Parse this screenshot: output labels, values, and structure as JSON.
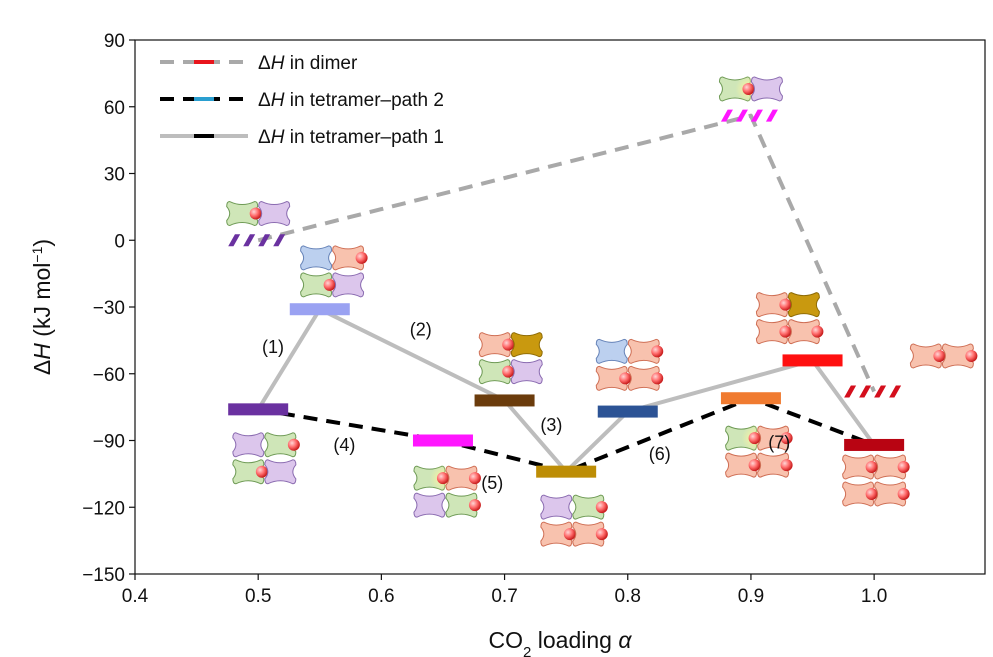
{
  "chart_data": {
    "type": "line",
    "xlabel": "CO₂ loading α",
    "ylabel": "ΔH (kJ mol⁻¹)",
    "xlim": [
      0.4,
      1.09
    ],
    "ylim": [
      -150,
      90
    ],
    "xticks": [
      "0.4",
      "0.5",
      "0.6",
      "0.7",
      "0.8",
      "0.9",
      "1.0"
    ],
    "yticks": [
      "90",
      "60",
      "30",
      "0",
      "-30",
      "-60",
      "-90",
      "-120",
      "-150"
    ],
    "legend_position": "top-left",
    "legend": [
      {
        "label": "ΔH in dimer",
        "line_style": "dashed",
        "line_color": "#a9a9a9",
        "swatch_color": "#e8141c"
      },
      {
        "label": "ΔH in tetramer–path 2",
        "line_style": "dashed",
        "line_color": "#000000",
        "swatch_color": "#2a9fd0"
      },
      {
        "label": "ΔH in tetramer–path 1",
        "line_style": "solid",
        "line_color": "#bdbdbd",
        "swatch_color": "#000000"
      }
    ],
    "series": [
      {
        "name": "ΔH in dimer",
        "style": "dashed",
        "color": "#a9a9a9",
        "points": [
          {
            "x": 0.5,
            "y": 0
          },
          {
            "x": 0.9,
            "y": 56
          },
          {
            "x": 1.0,
            "y": -68
          }
        ]
      },
      {
        "name": "ΔH in tetramer–path 2",
        "style": "dashed",
        "color": "#000000",
        "points": [
          {
            "x": 0.5,
            "y": -76
          },
          {
            "x": 0.65,
            "y": -90
          },
          {
            "x": 0.75,
            "y": -104
          },
          {
            "x": 0.9,
            "y": -71
          },
          {
            "x": 1.0,
            "y": -92
          }
        ]
      },
      {
        "name": "ΔH in tetramer–path 1",
        "style": "solid",
        "color": "#bdbdbd",
        "points": [
          {
            "x": 0.5,
            "y": -76
          },
          {
            "x": 0.55,
            "y": -31
          },
          {
            "x": 0.7,
            "y": -72
          },
          {
            "x": 0.75,
            "y": -104
          },
          {
            "x": 0.8,
            "y": -77
          },
          {
            "x": 0.95,
            "y": -54
          },
          {
            "x": 1.0,
            "y": -92
          }
        ]
      }
    ],
    "levels": [
      {
        "x": 0.5,
        "y": -76,
        "color": "#6a31a0",
        "pattern": "solid"
      },
      {
        "x": 0.55,
        "y": -31,
        "color": "#9aa2f2",
        "pattern": "solid"
      },
      {
        "x": 0.65,
        "y": -90,
        "color": "#ff16ff",
        "pattern": "solid"
      },
      {
        "x": 0.7,
        "y": -72,
        "color": "#6b3c0c",
        "pattern": "solid"
      },
      {
        "x": 0.75,
        "y": -104,
        "color": "#bd8d05",
        "pattern": "solid"
      },
      {
        "x": 0.8,
        "y": -77,
        "color": "#2c5395",
        "pattern": "solid"
      },
      {
        "x": 0.9,
        "y": -71,
        "color": "#f07b30",
        "pattern": "solid"
      },
      {
        "x": 0.95,
        "y": -54,
        "color": "#ff1010",
        "pattern": "solid"
      },
      {
        "x": 1.0,
        "y": -92,
        "color": "#b80412",
        "pattern": "solid"
      },
      {
        "x": 0.5,
        "y": 0,
        "color": "#6a31a0",
        "pattern": "hatched"
      },
      {
        "x": 0.9,
        "y": 56,
        "color": "#ff16ff",
        "pattern": "hatched"
      },
      {
        "x": 1.0,
        "y": -68,
        "color": "#d40e1c",
        "pattern": "hatched"
      }
    ],
    "step_labels": [
      {
        "text": "(1)",
        "x": 0.512,
        "y": -48
      },
      {
        "text": "(2)",
        "x": 0.632,
        "y": -40
      },
      {
        "text": "(3)",
        "x": 0.738,
        "y": -83
      },
      {
        "text": "(4)",
        "x": 0.57,
        "y": -92
      },
      {
        "text": "(5)",
        "x": 0.69,
        "y": -109
      },
      {
        "text": "(6)",
        "x": 0.826,
        "y": -96
      },
      {
        "text": "(7)",
        "x": 0.923,
        "y": -91
      }
    ],
    "molecule_icons": [
      {
        "name": "dimer-molecule-icon",
        "x": 0.5,
        "y": 12,
        "rows": [
          [
            "green-1",
            "purple"
          ]
        ]
      },
      {
        "name": "tetramer-molecule-icon",
        "x": 0.56,
        "y": -14,
        "rows": [
          [
            "blue",
            "salmon-1"
          ],
          [
            "green-1",
            "purple"
          ]
        ]
      },
      {
        "name": "tetramer-molecule-icon",
        "x": 0.505,
        "y": -98,
        "rows": [
          [
            "purple",
            "green-1"
          ],
          [
            "green-1",
            "purple"
          ]
        ]
      },
      {
        "name": "tetramer-molecule-icon",
        "x": 0.652,
        "y": -113,
        "rows": [
          [
            "green-1g",
            "salmon-1"
          ],
          [
            "purple",
            "green-1"
          ]
        ]
      },
      {
        "name": "tetramer-molecule-icon",
        "x": 0.705,
        "y": -53,
        "rows": [
          [
            "salmon-1",
            "gold"
          ],
          [
            "green-1",
            "purple"
          ]
        ]
      },
      {
        "name": "tetramer-molecule-icon",
        "x": 0.755,
        "y": -126,
        "rows": [
          [
            "purple",
            "green-1"
          ],
          [
            "salmon-1",
            "salmon-1"
          ]
        ]
      },
      {
        "name": "tetramer-molecule-icon",
        "x": 0.8,
        "y": -56,
        "rows": [
          [
            "blue",
            "salmon-1"
          ],
          [
            "salmon-1",
            "salmon-1"
          ]
        ]
      },
      {
        "name": "tetramer-molecule-icon",
        "x": 0.905,
        "y": -95,
        "rows": [
          [
            "green-1g",
            "salmon-1"
          ],
          [
            "salmon-1",
            "salmon-1"
          ]
        ]
      },
      {
        "name": "tetramer-molecule-icon",
        "x": 0.93,
        "y": -35,
        "rows": [
          [
            "salmon-1",
            "gold"
          ],
          [
            "salmon-1",
            "salmon-1"
          ]
        ]
      },
      {
        "name": "tetramer-molecule-icon",
        "x": 1.0,
        "y": -108,
        "rows": [
          [
            "salmon-1",
            "salmon-1"
          ],
          [
            "salmon-1",
            "salmon-1"
          ]
        ]
      },
      {
        "name": "dimer-molecule-icon",
        "x": 0.9,
        "y": 68,
        "rows": [
          [
            "green-1g",
            "purple"
          ]
        ]
      },
      {
        "name": "dimer-molecule-icon",
        "x": 1.055,
        "y": -52,
        "rows": [
          [
            "salmon-1",
            "salmon-1"
          ]
        ]
      }
    ],
    "molecule_colors": {
      "green": {
        "fill": "#cfe6b8",
        "stroke": "#6e9a55"
      },
      "purple": {
        "fill": "#dcc6ec",
        "stroke": "#8a6bb0"
      },
      "blue": {
        "fill": "#bcd0ef",
        "stroke": "#6683b8"
      },
      "salmon": {
        "fill": "#f8c2ae",
        "stroke": "#cf6f55"
      },
      "gold": {
        "fill": "#c9990f",
        "stroke": "#8f6c06"
      }
    }
  }
}
